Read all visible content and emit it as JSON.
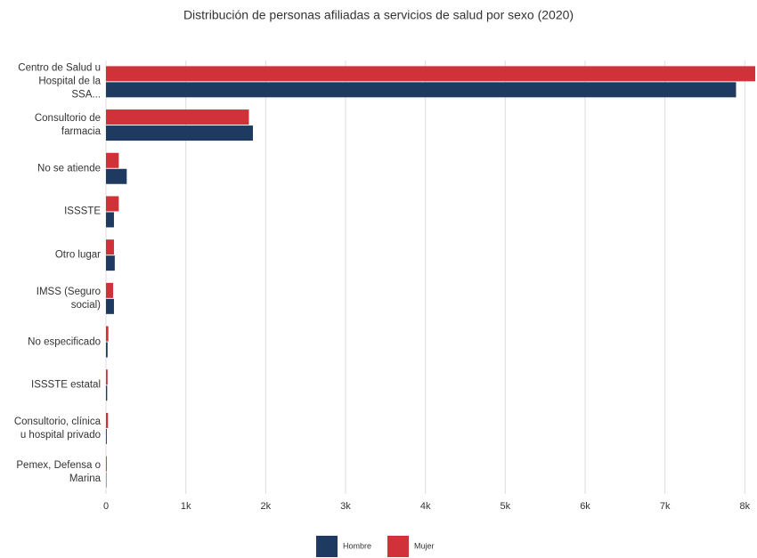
{
  "chart_data": {
    "type": "hbar",
    "title": "Distribución de personas afiliadas a servicios de salud por sexo (2020)",
    "categories": [
      "Centro de Salud u Hospital de la SSA...",
      "Consultorio de farmacia",
      "No se atiende",
      "ISSSTE",
      "Otro lugar",
      "IMSS (Seguro social)",
      "No especificado",
      "ISSSTE estatal",
      "Consultorio, clínica u hospital privado",
      "Pemex, Defensa o Marina"
    ],
    "series": [
      {
        "name": "Hombre",
        "color": "#1f3a60",
        "values": [
          7890,
          1840,
          260,
          100,
          110,
          100,
          20,
          15,
          10,
          5
        ]
      },
      {
        "name": "Mujer",
        "color": "#d13239",
        "values": [
          8130,
          1790,
          160,
          160,
          100,
          90,
          30,
          20,
          25,
          10
        ]
      }
    ],
    "xlim": [
      0,
      8130
    ],
    "xticks": [
      0,
      {
        "value": 1000,
        "label": "1k"
      },
      {
        "value": 2000,
        "label": "2k"
      },
      {
        "value": 3000,
        "label": "3k"
      },
      {
        "value": 4000,
        "label": "4k"
      },
      {
        "value": 5000,
        "label": "5k"
      },
      {
        "value": 6000,
        "label": "6k"
      },
      {
        "value": 7000,
        "label": "7k"
      },
      {
        "value": 8000,
        "label": "8k"
      }
    ],
    "grid": true,
    "legend": "bottom"
  }
}
